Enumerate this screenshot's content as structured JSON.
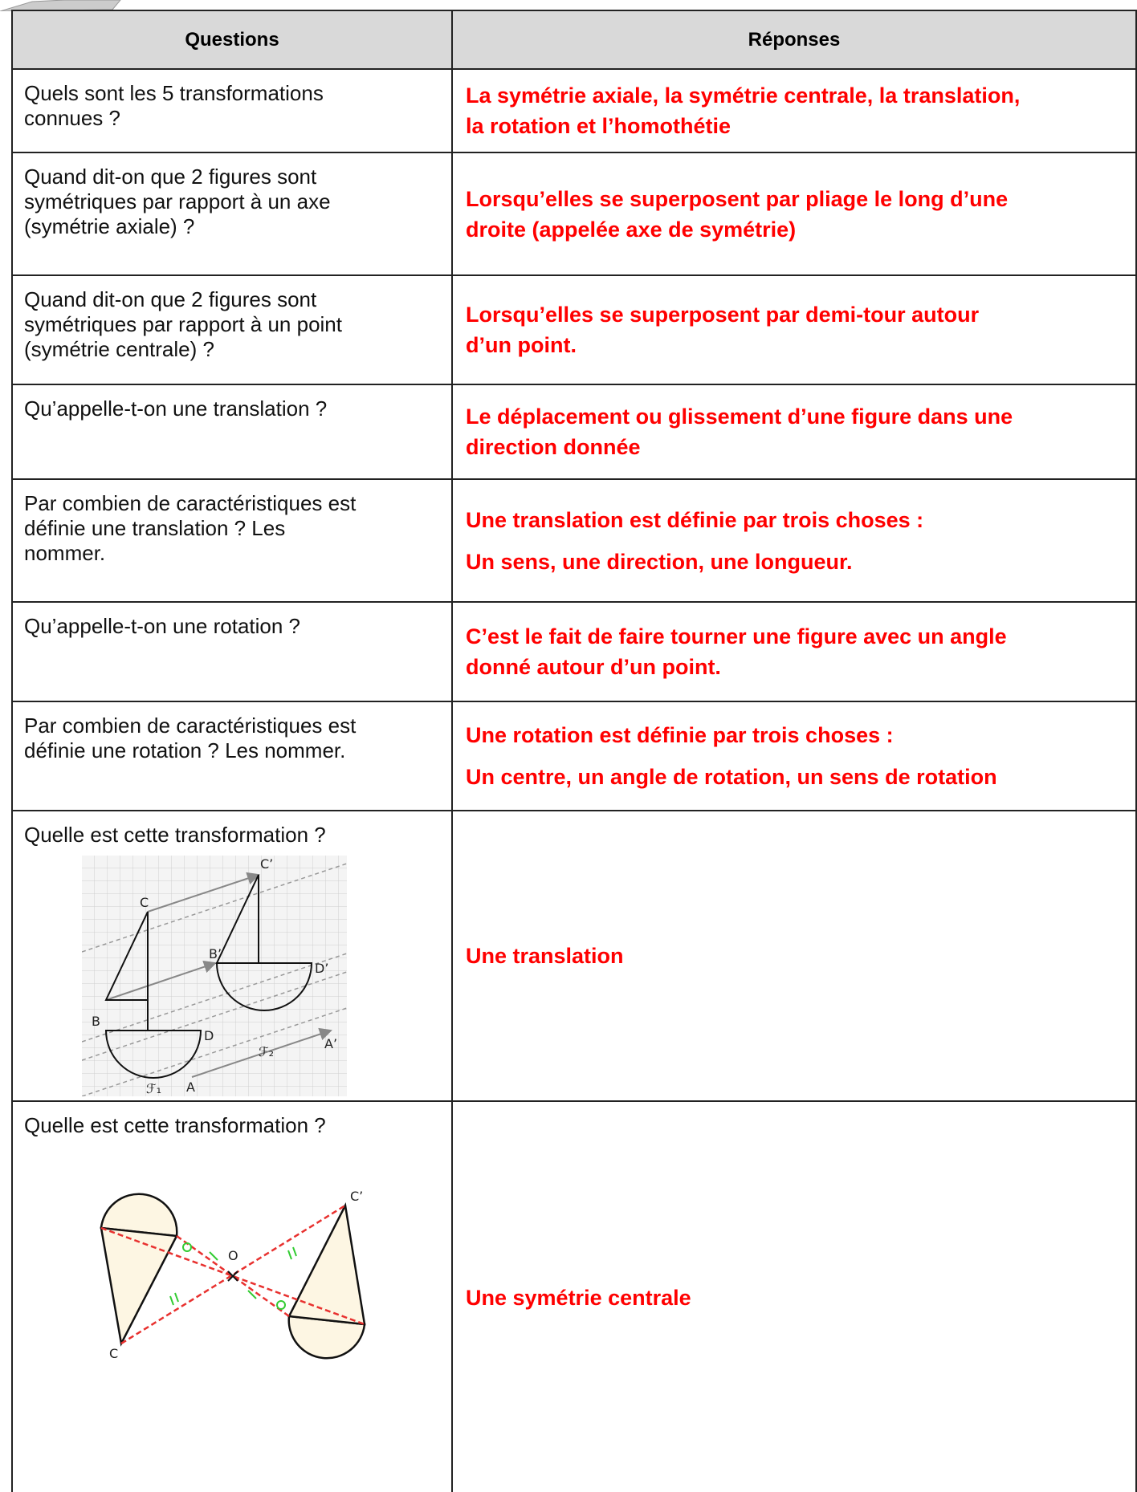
{
  "table": {
    "header": [
      "Questions",
      "Réponses"
    ],
    "rows": [
      {
        "question": [
          "Quels sont les 5 transformations",
          "connues ?"
        ],
        "answer": [
          [
            "La symétrie axiale, la symétrie centrale, la translation,",
            "la rotation et l’homothétie"
          ]
        ]
      },
      {
        "question": [
          "Quand dit-on que 2 figures sont",
          "symétriques par rapport à un axe",
          "(symétrie axiale) ?"
        ],
        "answer": [
          [
            "Lorsqu’elles se superposent par pliage le long d’une",
            "droite (appelée axe de symétrie)"
          ]
        ]
      },
      {
        "question": [
          "Quand dit-on que 2 figures sont",
          "symétriques par rapport à un point",
          "(symétrie centrale) ?"
        ],
        "answer": [
          [
            "Lorsqu’elles se superposent par demi-tour autour",
            "d’un point."
          ]
        ]
      },
      {
        "question": [
          "Qu’appelle-t-on une translation ?"
        ],
        "answer": [
          [
            "Le déplacement ou glissement d’une figure dans une",
            "direction donnée"
          ]
        ]
      },
      {
        "question": [
          "Par combien de caractéristiques est",
          "définie une translation ? Les",
          "nommer."
        ],
        "answer": [
          [
            "Une translation est définie par trois choses :"
          ],
          [
            "Un sens, une direction, une longueur."
          ]
        ]
      },
      {
        "question": [
          "Qu’appelle-t-on une rotation ?"
        ],
        "answer": [
          [
            "C’est le fait de faire tourner une figure avec un angle",
            "donné autour d’un point."
          ]
        ]
      },
      {
        "question": [
          "Par combien de caractéristiques est",
          "définie une rotation ? Les nommer."
        ],
        "answer": [
          [
            "Une rotation est définie par trois choses :"
          ],
          [
            "Un centre, un angle de rotation, un sens de rotation"
          ]
        ]
      },
      {
        "question": [
          "Quelle est cette transformation ?"
        ],
        "figure_labels": [
          "C’",
          "C",
          "B’",
          "D’",
          "B",
          "D",
          "ℱ₂",
          "A’",
          "ℱ₁",
          "A"
        ],
        "answer": [
          [
            "Une translation"
          ]
        ]
      },
      {
        "question": [
          "Quelle est cette transformation ?"
        ],
        "figure_labels": [
          "C’",
          "O",
          "C"
        ],
        "answer": [
          [
            "Une symétrie centrale"
          ]
        ]
      }
    ]
  }
}
